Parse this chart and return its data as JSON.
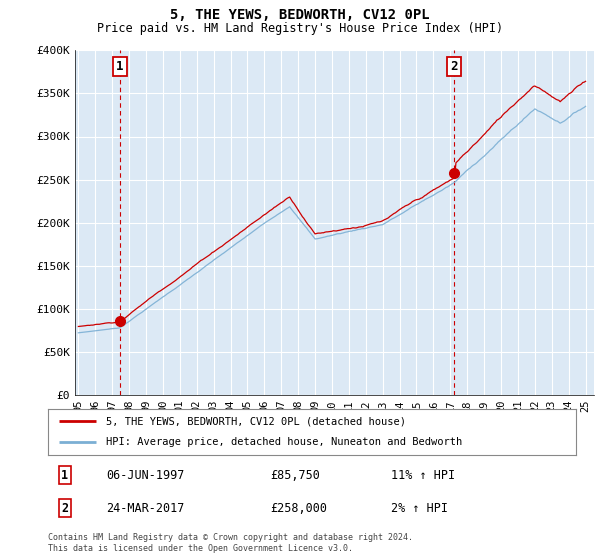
{
  "title": "5, THE YEWS, BEDWORTH, CV12 0PL",
  "subtitle": "Price paid vs. HM Land Registry's House Price Index (HPI)",
  "ylim": [
    0,
    400000
  ],
  "yticks": [
    0,
    50000,
    100000,
    150000,
    200000,
    250000,
    300000,
    350000,
    400000
  ],
  "ytick_labels": [
    "£0",
    "£50K",
    "£100K",
    "£150K",
    "£200K",
    "£250K",
    "£300K",
    "£350K",
    "£400K"
  ],
  "plot_bg_color": "#dce9f5",
  "grid_color": "#ffffff",
  "legend_label_red": "5, THE YEWS, BEDWORTH, CV12 0PL (detached house)",
  "legend_label_blue": "HPI: Average price, detached house, Nuneaton and Bedworth",
  "annotation1_date": "06-JUN-1997",
  "annotation1_price": "£85,750",
  "annotation1_hpi": "11% ↑ HPI",
  "annotation1_year": 1997.44,
  "annotation1_value": 85750,
  "annotation2_date": "24-MAR-2017",
  "annotation2_price": "£258,000",
  "annotation2_hpi": "2% ↑ HPI",
  "annotation2_year": 2017.22,
  "annotation2_value": 258000,
  "footer": "Contains HM Land Registry data © Crown copyright and database right 2024.\nThis data is licensed under the Open Government Licence v3.0.",
  "line_color_red": "#cc0000",
  "line_color_blue": "#7bafd4",
  "dashed_color": "#cc0000",
  "xstart": 1995,
  "xend": 2025
}
